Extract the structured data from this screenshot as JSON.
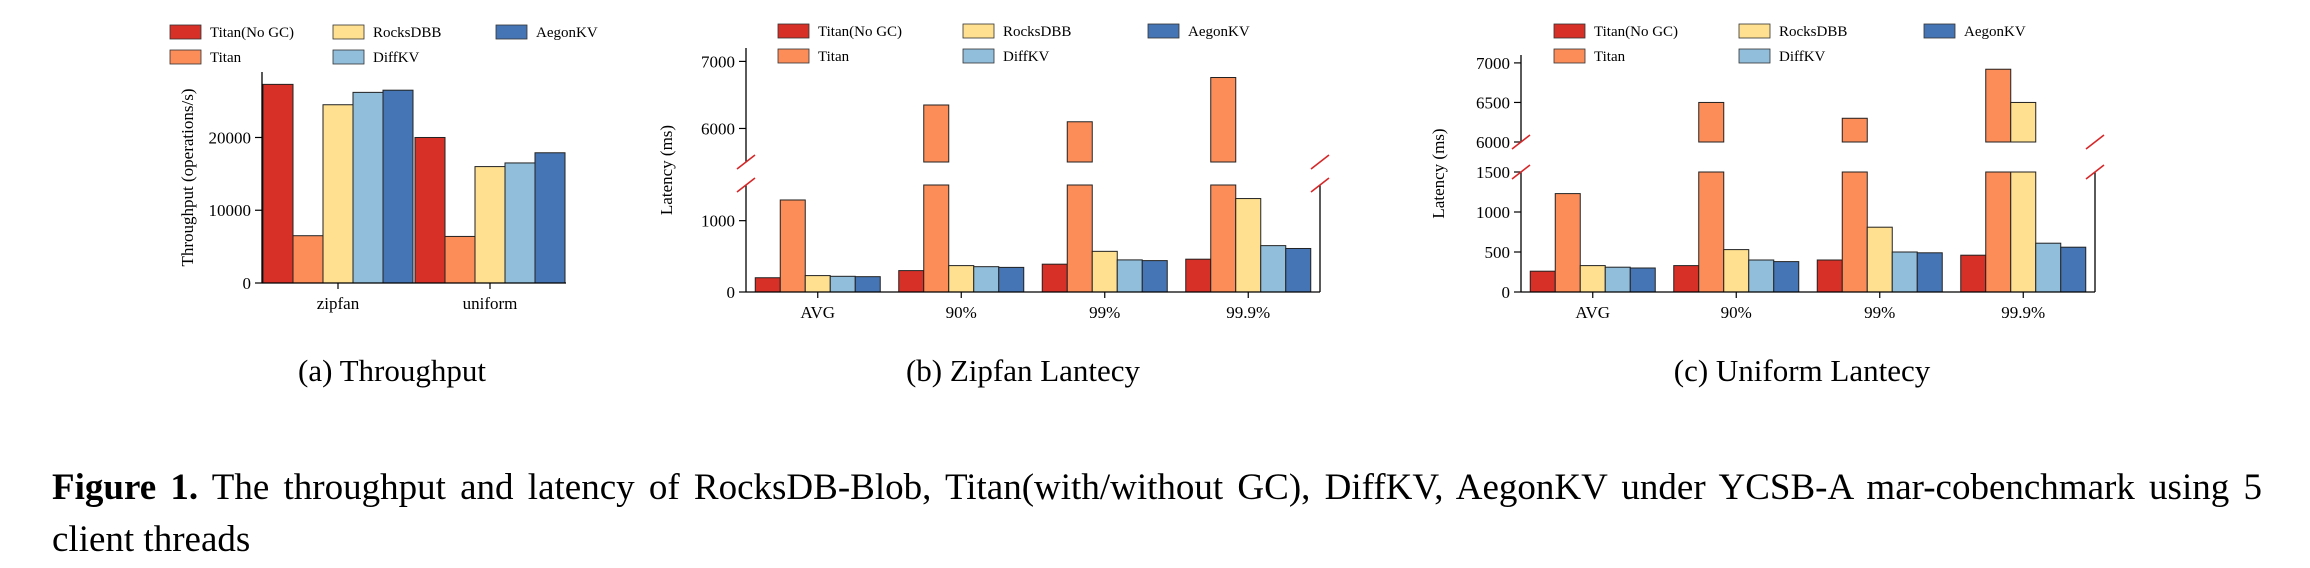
{
  "colors": {
    "Titan(No GC)": "#d73027",
    "Titan": "#fc8d59",
    "RocksDBB": "#fee090",
    "DiffKV": "#91bfdb",
    "AegonKV": "#4575b4",
    "break_mark": "#d62728"
  },
  "legend": {
    "row1": [
      "Titan(No GC)",
      "RocksDBB",
      "AegonKV"
    ],
    "row2": [
      "Titan",
      "DiffKV"
    ]
  },
  "series_order": [
    "Titan(No GC)",
    "Titan",
    "RocksDBB",
    "DiffKV",
    "AegonKV"
  ],
  "chart_data": [
    {
      "id": "throughput",
      "type": "bar",
      "sub_caption": "(a)  Throughput",
      "ylabel": "Throughput (operations/s)",
      "xlabel": "",
      "categories": [
        "zipfan",
        "uniform"
      ],
      "ylim": [
        0,
        29000
      ],
      "yticks": [
        0,
        10000,
        20000
      ],
      "legend_position": "top",
      "series": [
        {
          "name": "Titan(No GC)",
          "values": [
            27300,
            20000
          ]
        },
        {
          "name": "Titan",
          "values": [
            6500,
            6400
          ]
        },
        {
          "name": "RocksDBB",
          "values": [
            24500,
            16000
          ]
        },
        {
          "name": "DiffKV",
          "values": [
            26200,
            16500
          ]
        },
        {
          "name": "AegonKV",
          "values": [
            26500,
            17900
          ]
        }
      ]
    },
    {
      "id": "zipfan_latency",
      "type": "bar",
      "broken_axis": true,
      "sub_caption": "(b)  Zipfan Lantecy",
      "ylabel": "Latency (ms)",
      "xlabel": "",
      "categories": [
        "AVG",
        "90%",
        "99%",
        "99.9%"
      ],
      "lower_ylim": [
        0,
        1500
      ],
      "upper_ylim": [
        5500,
        7200
      ],
      "lower_yticks": [
        0,
        1000
      ],
      "upper_yticks": [
        6000,
        7000
      ],
      "legend_position": "top",
      "series": [
        {
          "name": "Titan(No GC)",
          "values": [
            200,
            300,
            390,
            460
          ]
        },
        {
          "name": "Titan",
          "values": [
            1290,
            6350,
            6100,
            6760
          ]
        },
        {
          "name": "RocksDBB",
          "values": [
            230,
            370,
            570,
            1310
          ]
        },
        {
          "name": "DiffKV",
          "values": [
            220,
            355,
            450,
            650
          ]
        },
        {
          "name": "AegonKV",
          "values": [
            215,
            345,
            440,
            610
          ]
        }
      ]
    },
    {
      "id": "uniform_latency",
      "type": "bar",
      "broken_axis": true,
      "sub_caption": "(c)  Uniform Lantecy",
      "ylabel": "Latency (ms)",
      "xlabel": "",
      "categories": [
        "AVG",
        "90%",
        "99%",
        "99.9%"
      ],
      "lower_ylim": [
        0,
        1500
      ],
      "upper_ylim": [
        6000,
        7100
      ],
      "lower_yticks": [
        0,
        500,
        1000,
        1500
      ],
      "upper_yticks": [
        6000,
        6500,
        7000
      ],
      "legend_position": "top",
      "series": [
        {
          "name": "Titan(No GC)",
          "values": [
            260,
            330,
            400,
            460
          ]
        },
        {
          "name": "Titan",
          "values": [
            1230,
            6500,
            6300,
            6920
          ]
        },
        {
          "name": "RocksDBB",
          "values": [
            330,
            530,
            810,
            6500
          ]
        },
        {
          "name": "DiffKV",
          "values": [
            310,
            400,
            500,
            610
          ]
        },
        {
          "name": "AegonKV",
          "values": [
            300,
            380,
            490,
            560
          ]
        }
      ]
    }
  ],
  "caption": {
    "label": "Figure 1.",
    "text": " The throughput and latency of RocksDB-Blob, Titan(with/without GC), DiffKV, AegonKV under YCSB-A mar-cobenchmark using 5 client threads"
  }
}
